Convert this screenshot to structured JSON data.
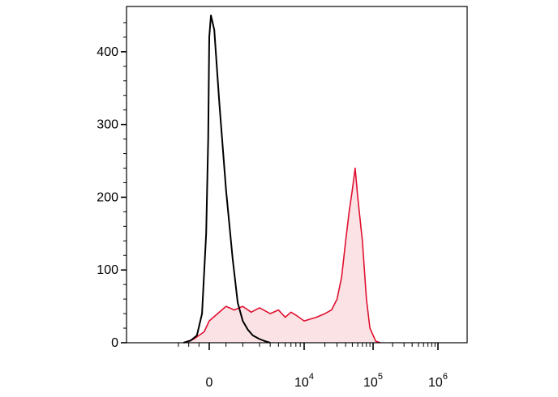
{
  "chart_data": {
    "type": "area",
    "title": "",
    "xlabel": "",
    "ylabel": "",
    "xscale": "biexponential (linear near 0, log above)",
    "ylim": [
      0,
      460
    ],
    "yticks": [
      0,
      100,
      200,
      300,
      400
    ],
    "y_tick_labels": [
      "0",
      "100",
      "200",
      "300",
      "400"
    ],
    "x_tick_labels": [
      {
        "base": "0",
        "exp": ""
      },
      {
        "base": "10",
        "exp": "4"
      },
      {
        "base": "10",
        "exp": "5"
      },
      {
        "base": "10",
        "exp": "6"
      }
    ],
    "series": [
      {
        "color": "#000000",
        "fill": "none",
        "description_points": "control histogram, sharp peak near 0",
        "x": [
          -2500,
          -1800,
          -1200,
          -700,
          -300,
          -100,
          0,
          100,
          300,
          600,
          1000,
          1400,
          1700,
          2000,
          2300,
          2600,
          3000,
          3500,
          4000
        ],
        "y": [
          0,
          3,
          10,
          40,
          150,
          280,
          420,
          450,
          430,
          330,
          210,
          115,
          55,
          30,
          18,
          10,
          5,
          2,
          0
        ]
      },
      {
        "color": "#e0102f",
        "fill": "#fbe3e5",
        "description_points": "stained histogram, broad shoulder then peak near 5e4",
        "x": [
          -2500,
          -1500,
          -500,
          0,
          500,
          1000,
          1500,
          2000,
          2500,
          3000,
          4000,
          5000,
          6000,
          7000,
          8000,
          10000,
          15000,
          20000,
          25000,
          30000,
          35000,
          40000,
          45000,
          50000,
          55000,
          60000,
          70000,
          80000,
          90000,
          110000,
          130000
        ],
        "y": [
          0,
          5,
          15,
          30,
          40,
          50,
          45,
          50,
          42,
          48,
          40,
          45,
          35,
          42,
          38,
          30,
          35,
          40,
          45,
          60,
          90,
          140,
          180,
          210,
          240,
          200,
          140,
          60,
          20,
          2,
          0
        ]
      }
    ]
  }
}
